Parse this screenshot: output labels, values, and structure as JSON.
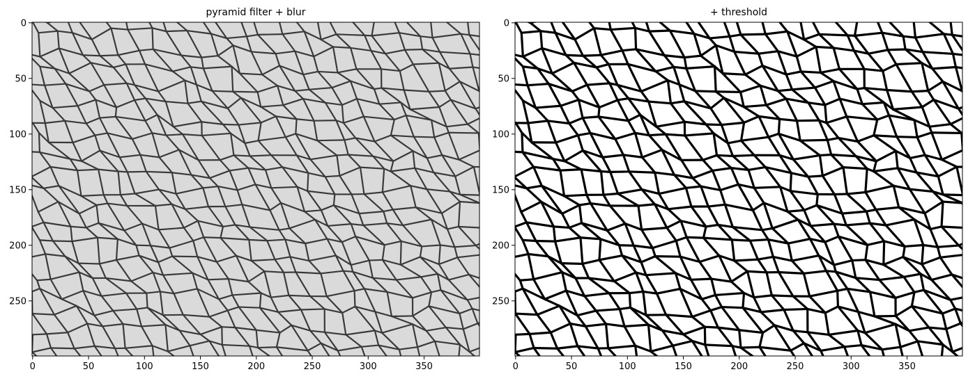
{
  "chart_data": [
    {
      "type": "image",
      "title": "pyramid filter + blur",
      "background": "#dadada",
      "line_color": "#3a3a3a",
      "xlim": [
        -0.5,
        399.5
      ],
      "ylim": [
        299.5,
        -0.5
      ],
      "xticks": [
        0,
        50,
        100,
        150,
        200,
        250,
        300,
        350
      ],
      "yticks": [
        0,
        50,
        100,
        150,
        200,
        250
      ]
    },
    {
      "type": "image",
      "title": "+ threshold",
      "background": "#ffffff",
      "line_color": "#000000",
      "xlim": [
        -0.5,
        399.5
      ],
      "ylim": [
        299.5,
        -0.5
      ],
      "xticks": [
        0,
        50,
        100,
        150,
        200,
        250,
        300,
        350
      ],
      "yticks": [
        0,
        50,
        100,
        150,
        200,
        250
      ]
    }
  ]
}
